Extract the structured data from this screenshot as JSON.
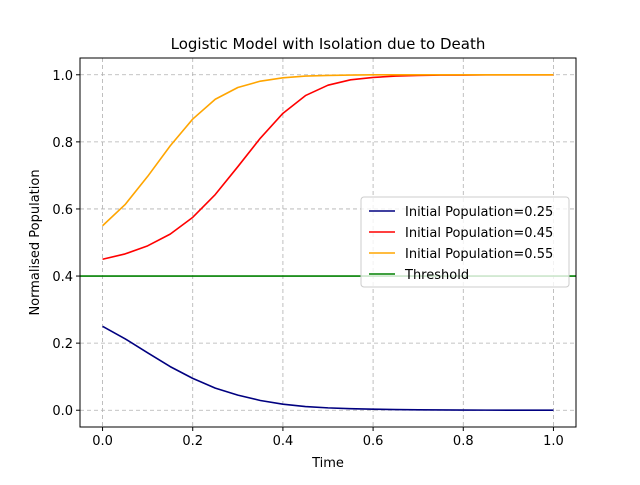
{
  "chart_data": {
    "type": "line",
    "title": "Logistic Model with Isolation due to Death",
    "xlabel": "Time",
    "ylabel": "Normalised Population",
    "xlim": [
      -0.05,
      1.05
    ],
    "ylim": [
      -0.05,
      1.05
    ],
    "xticks": [
      "0.0",
      "0.2",
      "0.4",
      "0.6",
      "0.8",
      "1.0"
    ],
    "yticks": [
      "0.0",
      "0.2",
      "0.4",
      "0.6",
      "0.8",
      "1.0"
    ],
    "grid": true,
    "legend_position": "center-right",
    "x": [
      0.0,
      0.05,
      0.1,
      0.15,
      0.2,
      0.25,
      0.3,
      0.35,
      0.4,
      0.45,
      0.5,
      0.55,
      0.6,
      0.65,
      0.7,
      0.75,
      0.8,
      0.85,
      0.9,
      0.95,
      1.0
    ],
    "series": [
      {
        "name": "Initial Population=0.25",
        "color": "#000080",
        "values": [
          0.25,
          0.213,
          0.171,
          0.13,
          0.095,
          0.066,
          0.045,
          0.029,
          0.018,
          0.011,
          0.007,
          0.0045,
          0.003,
          0.002,
          0.0012,
          0.0008,
          0.0005,
          0.0003,
          0.0002,
          0.0001,
          0.0001
        ]
      },
      {
        "name": "Initial Population=0.45",
        "color": "#ff0000",
        "values": [
          0.45,
          0.466,
          0.49,
          0.525,
          0.575,
          0.643,
          0.726,
          0.811,
          0.885,
          0.938,
          0.969,
          0.985,
          0.992,
          0.996,
          0.998,
          0.999,
          0.999,
          1.0,
          1.0,
          1.0,
          1.0
        ]
      },
      {
        "name": "Initial Population=0.55",
        "color": "#ffa500",
        "values": [
          0.55,
          0.613,
          0.697,
          0.788,
          0.868,
          0.927,
          0.962,
          0.981,
          0.991,
          0.996,
          0.998,
          0.999,
          1.0,
          1.0,
          1.0,
          1.0,
          1.0,
          1.0,
          1.0,
          1.0,
          1.0
        ]
      },
      {
        "name": "Threshold",
        "color": "#008000",
        "type": "hline",
        "y": 0.4
      }
    ]
  }
}
